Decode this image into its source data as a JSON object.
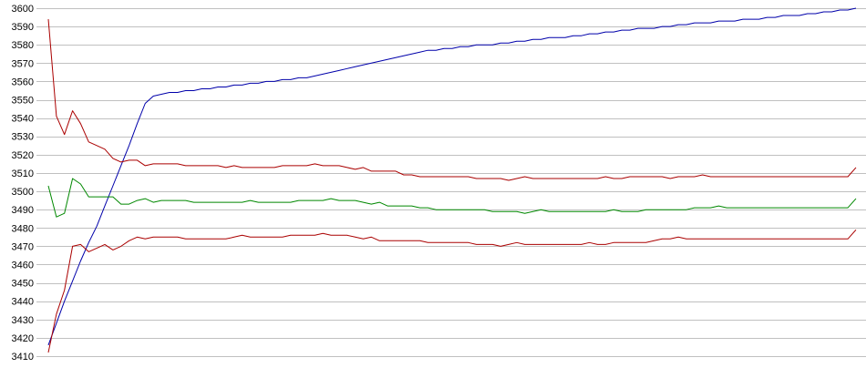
{
  "chart_data": {
    "type": "line",
    "title": "",
    "xlabel": "",
    "ylabel": "",
    "ylim": [
      3410,
      3600
    ],
    "yticks": [
      3410,
      3420,
      3430,
      3440,
      3450,
      3460,
      3470,
      3480,
      3490,
      3500,
      3510,
      3520,
      3530,
      3540,
      3550,
      3560,
      3570,
      3580,
      3590,
      3600
    ],
    "grid": true,
    "x": [
      0,
      1,
      2,
      3,
      4,
      5,
      6,
      7,
      8,
      9,
      10,
      11,
      12,
      13,
      14,
      15,
      16,
      17,
      18,
      19,
      20,
      21,
      22,
      23,
      24,
      25,
      26,
      27,
      28,
      29,
      30,
      31,
      32,
      33,
      34,
      35,
      36,
      37,
      38,
      39,
      40,
      41,
      42,
      43,
      44,
      45,
      46,
      47,
      48,
      49,
      50,
      51,
      52,
      53,
      54,
      55,
      56,
      57,
      58,
      59,
      60,
      61,
      62,
      63,
      64,
      65,
      66,
      67,
      68,
      69,
      70,
      71,
      72,
      73,
      74,
      75,
      76,
      77,
      78,
      79,
      80,
      81,
      82,
      83,
      84,
      85,
      86,
      87,
      88,
      89,
      90,
      91,
      92,
      93,
      94,
      95,
      96,
      97,
      98,
      99,
      100
    ],
    "series": [
      {
        "color": "#0000aa",
        "values": [
          3416,
          3428,
          3440,
          3451,
          3462,
          3472,
          3481,
          3492,
          3503,
          3514,
          3525,
          3537,
          3548,
          3552,
          3553,
          3554,
          3554,
          3555,
          3555,
          3556,
          3556,
          3557,
          3557,
          3558,
          3558,
          3559,
          3559,
          3560,
          3560,
          3561,
          3561,
          3562,
          3562,
          3563,
          3564,
          3565,
          3566,
          3567,
          3568,
          3569,
          3570,
          3571,
          3572,
          3573,
          3574,
          3575,
          3576,
          3577,
          3577,
          3578,
          3578,
          3579,
          3579,
          3580,
          3580,
          3580,
          3581,
          3581,
          3582,
          3582,
          3583,
          3583,
          3584,
          3584,
          3584,
          3585,
          3585,
          3586,
          3586,
          3587,
          3587,
          3588,
          3588,
          3589,
          3589,
          3589,
          3590,
          3590,
          3591,
          3591,
          3592,
          3592,
          3592,
          3593,
          3593,
          3593,
          3594,
          3594,
          3594,
          3595,
          3595,
          3596,
          3596,
          3596,
          3597,
          3597,
          3598,
          3598,
          3599,
          3599,
          3600
        ]
      },
      {
        "color": "#aa0000",
        "values": [
          3594,
          3541,
          3531,
          3544,
          3537,
          3527,
          3525,
          3523,
          3518,
          3516,
          3517,
          3517,
          3514,
          3515,
          3515,
          3515,
          3515,
          3514,
          3514,
          3514,
          3514,
          3514,
          3513,
          3514,
          3513,
          3513,
          3513,
          3513,
          3513,
          3514,
          3514,
          3514,
          3514,
          3515,
          3514,
          3514,
          3514,
          3513,
          3512,
          3513,
          3511,
          3511,
          3511,
          3511,
          3509,
          3509,
          3508,
          3508,
          3508,
          3508,
          3508,
          3508,
          3508,
          3507,
          3507,
          3507,
          3507,
          3506,
          3507,
          3508,
          3507,
          3507,
          3507,
          3507,
          3507,
          3507,
          3507,
          3507,
          3507,
          3508,
          3507,
          3507,
          3508,
          3508,
          3508,
          3508,
          3508,
          3507,
          3508,
          3508,
          3508,
          3509,
          3508,
          3508,
          3508,
          3508,
          3508,
          3508,
          3508,
          3508,
          3508,
          3508,
          3508,
          3508,
          3508,
          3508,
          3508,
          3508,
          3508,
          3508,
          3513
        ]
      },
      {
        "color": "#008800",
        "values": [
          3503,
          3486,
          3488,
          3507,
          3504,
          3497,
          3497,
          3497,
          3497,
          3493,
          3493,
          3495,
          3496,
          3494,
          3495,
          3495,
          3495,
          3495,
          3494,
          3494,
          3494,
          3494,
          3494,
          3494,
          3494,
          3495,
          3494,
          3494,
          3494,
          3494,
          3494,
          3495,
          3495,
          3495,
          3495,
          3496,
          3495,
          3495,
          3495,
          3494,
          3493,
          3494,
          3492,
          3492,
          3492,
          3492,
          3491,
          3491,
          3490,
          3490,
          3490,
          3490,
          3490,
          3490,
          3490,
          3489,
          3489,
          3489,
          3489,
          3488,
          3489,
          3490,
          3489,
          3489,
          3489,
          3489,
          3489,
          3489,
          3489,
          3489,
          3490,
          3489,
          3489,
          3489,
          3490,
          3490,
          3490,
          3490,
          3490,
          3490,
          3491,
          3491,
          3491,
          3492,
          3491,
          3491,
          3491,
          3491,
          3491,
          3491,
          3491,
          3491,
          3491,
          3491,
          3491,
          3491,
          3491,
          3491,
          3491,
          3491,
          3496
        ]
      },
      {
        "color": "#aa0000",
        "values": [
          3412,
          3433,
          3446,
          3470,
          3471,
          3467,
          3469,
          3471,
          3468,
          3470,
          3473,
          3475,
          3474,
          3475,
          3475,
          3475,
          3475,
          3474,
          3474,
          3474,
          3474,
          3474,
          3474,
          3475,
          3476,
          3475,
          3475,
          3475,
          3475,
          3475,
          3476,
          3476,
          3476,
          3476,
          3477,
          3476,
          3476,
          3476,
          3475,
          3474,
          3475,
          3473,
          3473,
          3473,
          3473,
          3473,
          3473,
          3472,
          3472,
          3472,
          3472,
          3472,
          3472,
          3471,
          3471,
          3471,
          3470,
          3471,
          3472,
          3471,
          3471,
          3471,
          3471,
          3471,
          3471,
          3471,
          3471,
          3472,
          3471,
          3471,
          3472,
          3472,
          3472,
          3472,
          3472,
          3473,
          3474,
          3474,
          3475,
          3474,
          3474,
          3474,
          3474,
          3474,
          3474,
          3474,
          3474,
          3474,
          3474,
          3474,
          3474,
          3474,
          3474,
          3474,
          3474,
          3474,
          3474,
          3474,
          3474,
          3474,
          3479
        ]
      }
    ]
  }
}
